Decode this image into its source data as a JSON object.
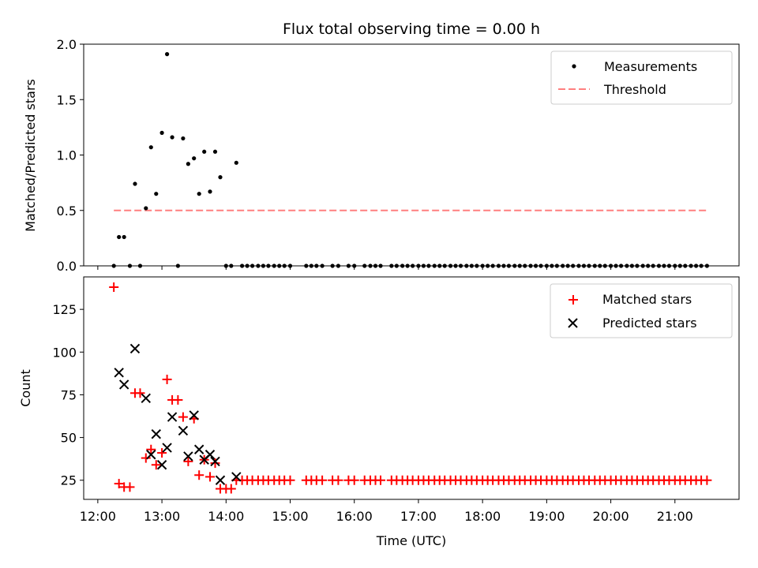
{
  "chart_data": [
    {
      "type": "scatter",
      "title": "Flux total observing time = 0.00 h",
      "xlabel": "",
      "ylabel": "Matched/Predicted stars",
      "xlim": [
        11.78,
        22.0
      ],
      "ylim": [
        0,
        2.0
      ],
      "yticks": [
        0.0,
        0.5,
        1.0,
        1.5,
        2.0
      ],
      "ytick_labels": [
        "0.0",
        "0.5",
        "1.0",
        "1.5",
        "2.0"
      ],
      "legend_position": "upper right",
      "series": [
        {
          "name": "Measurements",
          "marker": "point",
          "color": "#000000",
          "x": [
            12.25,
            12.33,
            12.41,
            12.5,
            12.58,
            12.66,
            12.75,
            12.83,
            12.91,
            13.0,
            13.08,
            13.16,
            13.25,
            13.33,
            13.41,
            13.5,
            13.58,
            13.66,
            13.75,
            13.83,
            13.91,
            14.0,
            14.08,
            14.16,
            14.25,
            14.33,
            14.41,
            14.5,
            14.58,
            14.66,
            14.75,
            14.83,
            14.91,
            15.0,
            15.25,
            15.33,
            15.41,
            15.5,
            15.66,
            15.75,
            15.91,
            16.0,
            16.16,
            16.25,
            16.33,
            16.41,
            16.58,
            16.66,
            16.75,
            16.83,
            16.91,
            17.0,
            17.08,
            17.16,
            17.25,
            17.33,
            17.41,
            17.5,
            17.58,
            17.66,
            17.75,
            17.83,
            17.91,
            18.0,
            18.08,
            18.16,
            18.25,
            18.33,
            18.41,
            18.5,
            18.58,
            18.66,
            18.75,
            18.83,
            18.91,
            19.0,
            19.08,
            19.16,
            19.25,
            19.33,
            19.41,
            19.5,
            19.58,
            19.66,
            19.75,
            19.83,
            19.91,
            20.0,
            20.08,
            20.16,
            20.25,
            20.33,
            20.41,
            20.5,
            20.58,
            20.66,
            20.75,
            20.83,
            20.91,
            21.0,
            21.08,
            21.16,
            21.25,
            21.33,
            21.41,
            21.5
          ],
          "y": [
            0.0,
            0.26,
            0.26,
            0.0,
            0.74,
            0.0,
            0.52,
            1.07,
            0.65,
            1.2,
            1.91,
            1.16,
            0.0,
            1.15,
            0.92,
            0.97,
            0.65,
            1.03,
            0.67,
            1.03,
            0.8,
            0.0,
            0.0,
            0.93,
            0.0,
            0.0,
            0.0,
            0.0,
            0.0,
            0.0,
            0.0,
            0.0,
            0.0,
            0.0,
            0.0,
            0.0,
            0.0,
            0.0,
            0.0,
            0.0,
            0.0,
            0.0,
            0.0,
            0.0,
            0.0,
            0.0,
            0.0,
            0.0,
            0.0,
            0.0,
            0.0,
            0.0,
            0.0,
            0.0,
            0.0,
            0.0,
            0.0,
            0.0,
            0.0,
            0.0,
            0.0,
            0.0,
            0.0,
            0.0,
            0.0,
            0.0,
            0.0,
            0.0,
            0.0,
            0.0,
            0.0,
            0.0,
            0.0,
            0.0,
            0.0,
            0.0,
            0.0,
            0.0,
            0.0,
            0.0,
            0.0,
            0.0,
            0.0,
            0.0,
            0.0,
            0.0,
            0.0,
            0.0,
            0.0,
            0.0,
            0.0,
            0.0,
            0.0,
            0.0,
            0.0,
            0.0,
            0.0,
            0.0,
            0.0,
            0.0,
            0.0,
            0.0,
            0.0,
            0.0,
            0.0,
            0.0
          ]
        },
        {
          "name": "Threshold",
          "type": "line",
          "style": "dashed",
          "color": "#ff7f7f",
          "x": [
            12.25,
            21.5
          ],
          "y": [
            0.5,
            0.5
          ]
        }
      ]
    },
    {
      "type": "scatter",
      "title": "",
      "xlabel": "Time (UTC)",
      "ylabel": "Count",
      "xlim": [
        11.78,
        22.0
      ],
      "ylim": [
        13.8,
        144.0
      ],
      "xticks": [
        12,
        13,
        14,
        15,
        16,
        17,
        18,
        19,
        20,
        21
      ],
      "xtick_labels": [
        "12:00",
        "13:00",
        "14:00",
        "15:00",
        "16:00",
        "17:00",
        "18:00",
        "19:00",
        "20:00",
        "21:00"
      ],
      "yticks": [
        25,
        50,
        75,
        100,
        125
      ],
      "ytick_labels": [
        "25",
        "50",
        "75",
        "100",
        "125"
      ],
      "legend_position": "upper right",
      "series": [
        {
          "name": "Matched stars",
          "marker": "plus",
          "color": "#ff0000",
          "x": [
            12.25,
            12.33,
            12.41,
            12.5,
            12.58,
            12.66,
            12.75,
            12.83,
            12.91,
            13.0,
            13.08,
            13.16,
            13.25,
            13.33,
            13.41,
            13.5,
            13.58,
            13.66,
            13.75,
            13.83,
            13.91,
            14.0,
            14.08,
            14.16,
            14.25,
            14.33,
            14.41,
            14.5,
            14.58,
            14.66,
            14.75,
            14.83,
            14.91,
            15.0,
            15.25,
            15.33,
            15.41,
            15.5,
            15.66,
            15.75,
            15.91,
            16.0,
            16.16,
            16.25,
            16.33,
            16.41,
            16.58,
            16.66,
            16.75,
            16.83,
            16.91,
            17.0,
            17.08,
            17.16,
            17.25,
            17.33,
            17.41,
            17.5,
            17.58,
            17.66,
            17.75,
            17.83,
            17.91,
            18.0,
            18.08,
            18.16,
            18.25,
            18.33,
            18.41,
            18.5,
            18.58,
            18.66,
            18.75,
            18.83,
            18.91,
            19.0,
            19.08,
            19.16,
            19.25,
            19.33,
            19.41,
            19.5,
            19.58,
            19.66,
            19.75,
            19.83,
            19.91,
            20.0,
            20.08,
            20.16,
            20.25,
            20.33,
            20.41,
            20.5,
            20.58,
            20.66,
            20.75,
            20.83,
            20.91,
            21.0,
            21.08,
            21.16,
            21.25,
            21.33,
            21.41,
            21.5
          ],
          "y": [
            138,
            23,
            21,
            21,
            76,
            76,
            38,
            43,
            34,
            41,
            84,
            72,
            72,
            62,
            36,
            61,
            28,
            37,
            27,
            35,
            20,
            20,
            20,
            25,
            25,
            25,
            25,
            25,
            25,
            25,
            25,
            25,
            25,
            25,
            25,
            25,
            25,
            25,
            25,
            25,
            25,
            25,
            25,
            25,
            25,
            25,
            25,
            25,
            25,
            25,
            25,
            25,
            25,
            25,
            25,
            25,
            25,
            25,
            25,
            25,
            25,
            25,
            25,
            25,
            25,
            25,
            25,
            25,
            25,
            25,
            25,
            25,
            25,
            25,
            25,
            25,
            25,
            25,
            25,
            25,
            25,
            25,
            25,
            25,
            25,
            25,
            25,
            25,
            25,
            25,
            25,
            25,
            25,
            25,
            25,
            25,
            25,
            25,
            25,
            25,
            25,
            25,
            25,
            25,
            25,
            25
          ]
        },
        {
          "name": "Predicted stars",
          "marker": "x",
          "color": "#000000",
          "x": [
            12.33,
            12.41,
            12.58,
            12.75,
            12.83,
            12.91,
            13.0,
            13.08,
            13.16,
            13.33,
            13.41,
            13.5,
            13.58,
            13.66,
            13.75,
            13.83,
            13.91,
            14.16
          ],
          "y": [
            88,
            81,
            102,
            73,
            40,
            52,
            34,
            44,
            62,
            54,
            39,
            63,
            43,
            37,
            40,
            36,
            25,
            27
          ]
        }
      ]
    }
  ]
}
